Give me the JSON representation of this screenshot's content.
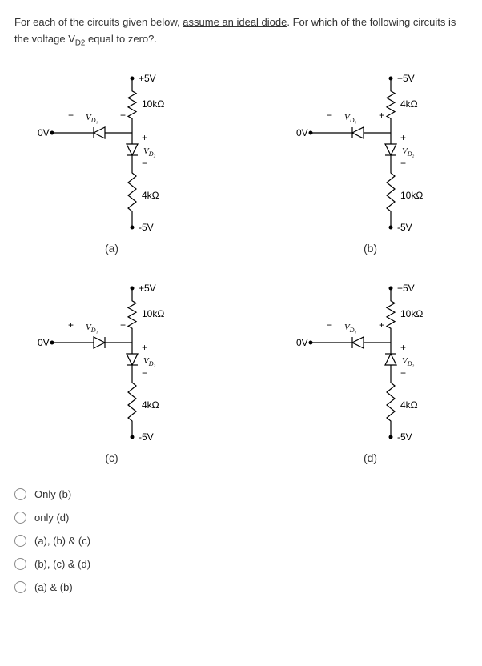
{
  "question": {
    "prefix": "For each of the circuits given below, ",
    "underlined": "assume an ideal diode",
    "middle": ". For which of the following circuits is the voltage V",
    "sub": "D2",
    "suffix": " equal to zero?."
  },
  "circuits": {
    "a": {
      "top_v": "+5V",
      "top_r": "10kΩ",
      "bottom_r": "4kΩ",
      "bottom_v": "-5V",
      "left_v": "0V",
      "vd1_sign_left": "−",
      "vd1_sign_right": "+",
      "vd1_label": "V_D1",
      "vd2_label": "V_D2",
      "d1_direction": "left",
      "d2_direction": "down",
      "label": "(a)"
    },
    "b": {
      "top_v": "+5V",
      "top_r": "4kΩ",
      "bottom_r": "10kΩ",
      "bottom_v": "-5V",
      "left_v": "0V",
      "vd1_sign_left": "−",
      "vd1_sign_right": "+",
      "vd1_label": "V_D1",
      "vd2_label": "V_D2",
      "d1_direction": "left",
      "d2_direction": "down",
      "label": "(b)"
    },
    "c": {
      "top_v": "+5V",
      "top_r": "10kΩ",
      "bottom_r": "4kΩ",
      "bottom_v": "-5V",
      "left_v": "0V",
      "vd1_sign_left": "+",
      "vd1_sign_right": "−",
      "vd1_label": "V_D1",
      "vd2_label": "V_D2",
      "d1_direction": "right",
      "d2_direction": "down",
      "label": "(c)"
    },
    "d": {
      "top_v": "+5V",
      "top_r": "10kΩ",
      "bottom_r": "4kΩ",
      "bottom_v": "-5V",
      "left_v": "0V",
      "vd1_sign_left": "−",
      "vd1_sign_right": "+",
      "vd1_label": "V_D1",
      "vd2_label": "V_D2",
      "d1_direction": "left",
      "d2_direction": "up",
      "label": "(d)"
    }
  },
  "options": [
    "Only (b)",
    "only (d)",
    "(a), (b) & (c)",
    "(b), (c) & (d)",
    "(a) & (b)"
  ],
  "style": {
    "wire_color": "#000000",
    "text_color": "#333333"
  }
}
